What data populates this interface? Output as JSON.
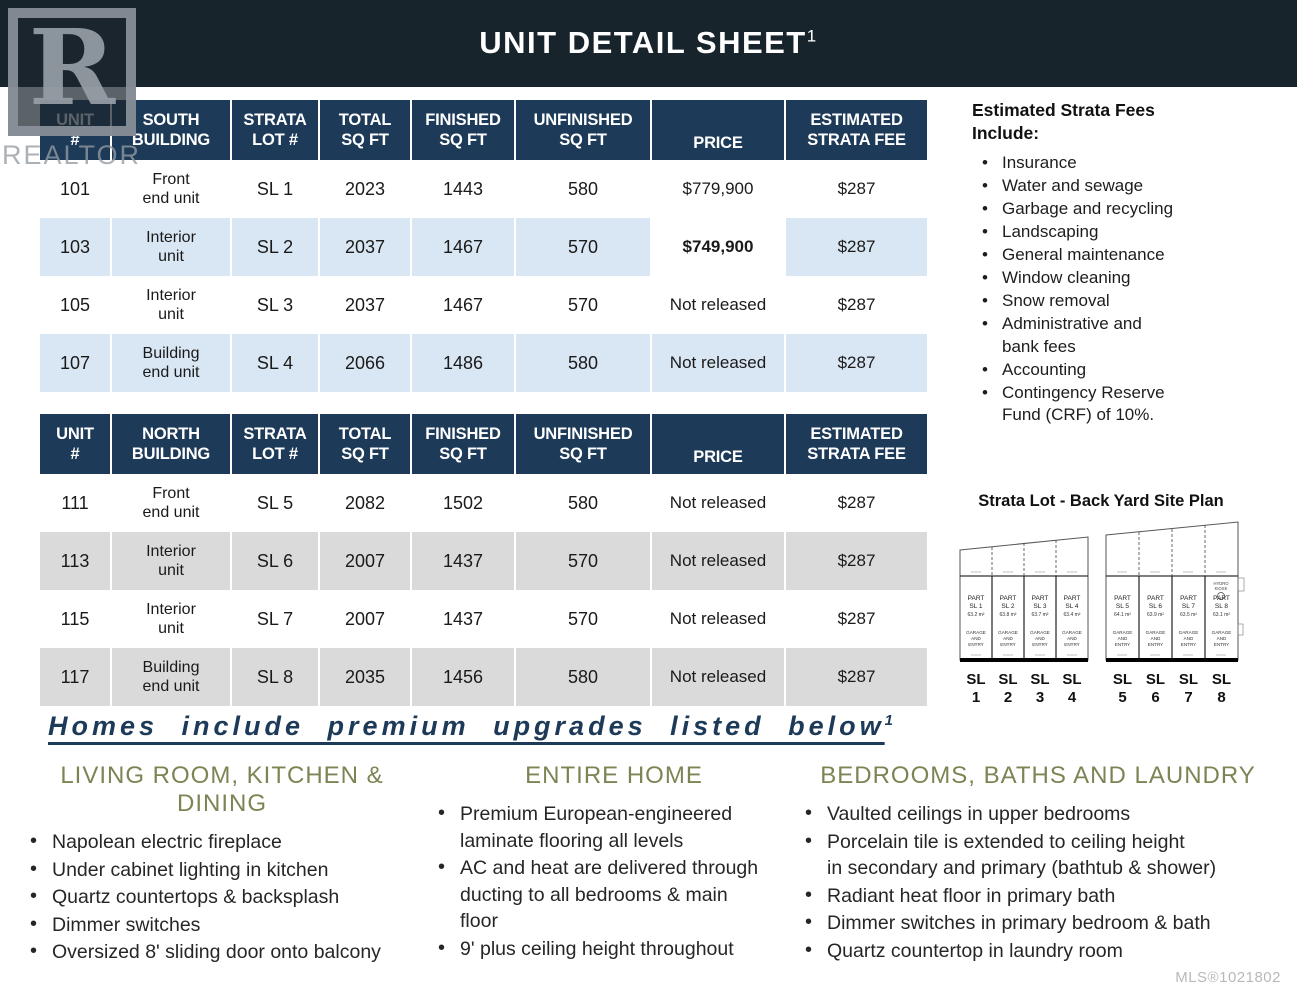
{
  "header": {
    "title": "UNIT DETAIL SHEET",
    "superscript": "1"
  },
  "watermark": {
    "letter": "R",
    "label": "REALTOR"
  },
  "colors": {
    "band": "#17242c",
    "table_header": "#1d3a58",
    "row_blue": "#d9e6f3",
    "row_gray": "#dadada",
    "accent_green": "#7d8454",
    "heading_navy": "#1d3a58"
  },
  "tables": [
    {
      "headers": [
        "UNIT\n#",
        "SOUTH\nBUILDING",
        "STRATA\nLOT #",
        "TOTAL\nSQ FT",
        "FINISHED\nSQ FT",
        "UNFINISHED\nSQ FT",
        "PRICE",
        "ESTIMATED\nSTRATA FEE"
      ],
      "rows": [
        {
          "unit": "101",
          "type": "Front\nend unit",
          "strata_lot": "SL 1",
          "total_sqft": "2023",
          "finished_sqft": "1443",
          "unfinished_sqft": "580",
          "price": "$779,900",
          "strata_fee": "$287"
        },
        {
          "unit": "103",
          "type": "Interior\nunit",
          "strata_lot": "SL 2",
          "total_sqft": "2037",
          "finished_sqft": "1467",
          "unfinished_sqft": "570",
          "price": "$749,900",
          "strata_fee": "$287"
        },
        {
          "unit": "105",
          "type": "Interior\nunit",
          "strata_lot": "SL 3",
          "total_sqft": "2037",
          "finished_sqft": "1467",
          "unfinished_sqft": "570",
          "price": "Not released",
          "strata_fee": "$287"
        },
        {
          "unit": "107",
          "type": "Building\nend unit",
          "strata_lot": "SL 4",
          "total_sqft": "2066",
          "finished_sqft": "1486",
          "unfinished_sqft": "580",
          "price": "Not released",
          "strata_fee": "$287"
        }
      ]
    },
    {
      "headers": [
        "UNIT\n#",
        "NORTH\nBUILDING",
        "STRATA\nLOT #",
        "TOTAL\nSQ FT",
        "FINISHED\nSQ FT",
        "UNFINISHED\nSQ FT",
        "PRICE",
        "ESTIMATED\nSTRATA FEE"
      ],
      "rows": [
        {
          "unit": "111",
          "type": "Front\nend unit",
          "strata_lot": "SL 5",
          "total_sqft": "2082",
          "finished_sqft": "1502",
          "unfinished_sqft": "580",
          "price": "Not released",
          "strata_fee": "$287"
        },
        {
          "unit": "113",
          "type": "Interior\nunit",
          "strata_lot": "SL 6",
          "total_sqft": "2007",
          "finished_sqft": "1437",
          "unfinished_sqft": "570",
          "price": "Not released",
          "strata_fee": "$287"
        },
        {
          "unit": "115",
          "type": "Interior\nunit",
          "strata_lot": "SL 7",
          "total_sqft": "2007",
          "finished_sqft": "1437",
          "unfinished_sqft": "570",
          "price": "Not released",
          "strata_fee": "$287"
        },
        {
          "unit": "117",
          "type": "Building\nend unit",
          "strata_lot": "SL 8",
          "total_sqft": "2035",
          "finished_sqft": "1456",
          "unfinished_sqft": "580",
          "price": "Not released",
          "strata_fee": "$287"
        }
      ]
    }
  ],
  "strata_fees": {
    "heading": "Estimated Strata Fees\nInclude:",
    "items": [
      "Insurance",
      "Water and sewage",
      "Garbage and recycling",
      "Landscaping",
      "General maintenance",
      "Window cleaning",
      "Snow removal",
      "Administrative and\nbank fees",
      "Accounting",
      "Contingency Reserve\nFund (CRF) of 10%."
    ]
  },
  "site_plan": {
    "title": "Strata Lot - Back Yard Site Plan",
    "garage_note": [
      "GARAGE",
      "AND",
      "ENTRY"
    ],
    "sl8_note": [
      "HYDRO",
      "KIOSK"
    ],
    "lots": [
      {
        "part": "PART",
        "lot": "SL 1",
        "area": "63.2 m²",
        "label_top": "SL",
        "label_num": "1"
      },
      {
        "part": "PART",
        "lot": "SL 2",
        "area": "63.8 m²",
        "label_top": "SL",
        "label_num": "2"
      },
      {
        "part": "PART",
        "lot": "SL 3",
        "area": "63.7 m²",
        "label_top": "SL",
        "label_num": "3"
      },
      {
        "part": "PART",
        "lot": "SL 4",
        "area": "63.4 m²",
        "label_top": "SL",
        "label_num": "4"
      },
      {
        "part": "PART",
        "lot": "SL 5",
        "area": "64.1 m²",
        "label_top": "SL",
        "label_num": "5"
      },
      {
        "part": "PART",
        "lot": "SL 6",
        "area": "63.9 m²",
        "label_top": "SL",
        "label_num": "6"
      },
      {
        "part": "PART",
        "lot": "SL 7",
        "area": "63.5 m²",
        "label_top": "SL",
        "label_num": "7"
      },
      {
        "part": "PART",
        "lot": "SL 8",
        "area": "63.1 m²",
        "label_top": "SL",
        "label_num": "8"
      }
    ]
  },
  "upgrades": {
    "heading": "Homes include premium upgrades listed below",
    "superscript": "1",
    "columns": [
      {
        "title": "LIVING ROOM, KITCHEN & DINING",
        "items": [
          "Napolean electric fireplace",
          "Under cabinet lighting in kitchen",
          "Quartz countertops & backsplash",
          "Dimmer switches",
          "Oversized 8' sliding door onto balcony"
        ]
      },
      {
        "title": "ENTIRE HOME",
        "items": [
          "Premium European-engineered\nlaminate flooring all levels",
          "AC and heat are delivered through\nducting to all bedrooms & main\nfloor",
          "9' plus ceiling height throughout"
        ]
      },
      {
        "title": "BEDROOMS, BATHS AND LAUNDRY",
        "items": [
          "Vaulted ceilings in upper bedrooms",
          "Porcelain tile is extended to ceiling height\nin secondary and primary (bathtub &  shower)",
          "Radiant heat floor in primary bath",
          "Dimmer switches in primary bedroom & bath",
          "Quartz countertop in laundry room"
        ]
      }
    ]
  },
  "footer": {
    "mls": "MLS®1021802"
  }
}
